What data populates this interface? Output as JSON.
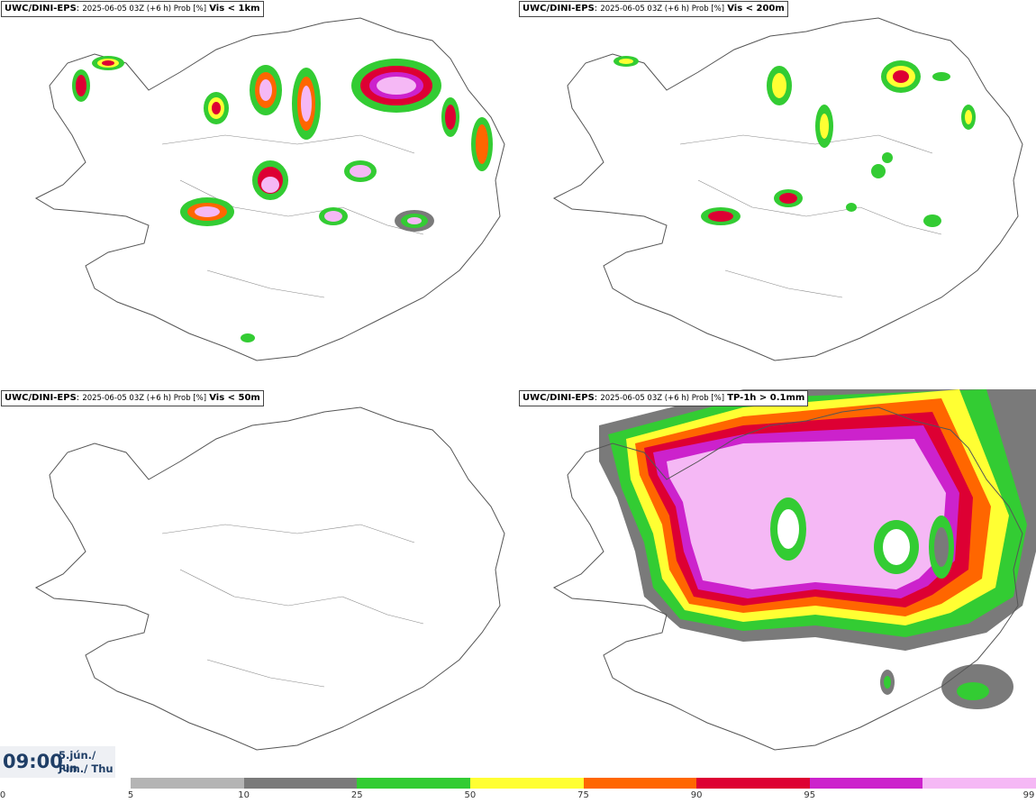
{
  "panels": [
    {
      "model": "UWC/DINI-EPS",
      "meta": "2025-06-05 03Z (+6 h) Prob [%]",
      "threshold": "Vis < 1km"
    },
    {
      "model": "UWC/DINI-EPS",
      "meta": "2025-06-05 03Z (+6 h) Prob [%]",
      "threshold": "Vis < 200m"
    },
    {
      "model": "UWC/DINI-EPS",
      "meta": "2025-06-05 03Z (+6 h) Prob [%]",
      "threshold": "Vis < 50m"
    },
    {
      "model": "UWC/DINI-EPS",
      "meta": "2025-06-05 03Z (+6 h) Prob [%]",
      "threshold": "TP-1h > 0.1mm"
    }
  ],
  "time": {
    "hour": "09:00",
    "date_line1": "5.jún./ Jun",
    "date_line2": "Fim./ Thu"
  },
  "legend": {
    "ticks": [
      "0",
      "5",
      "10",
      "25",
      "50",
      "75",
      "90",
      "95",
      "99"
    ],
    "colors": [
      "#b4b4b4",
      "#7a7a7a",
      "#33cc33",
      "#ffff33",
      "#ff6600",
      "#dd0033",
      "#cc22cc",
      "#f5b8f5"
    ]
  }
}
